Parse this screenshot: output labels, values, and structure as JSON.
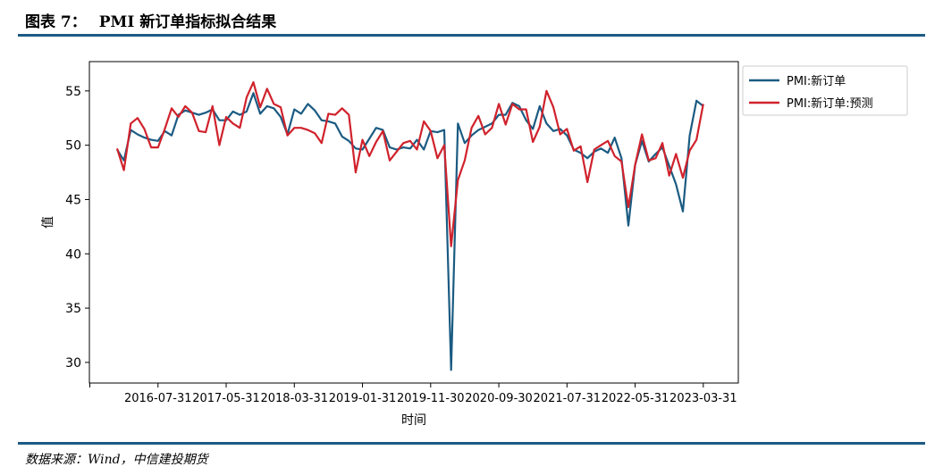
{
  "header": {
    "figure_number": "图表 7：",
    "title": "PMI 新订单指标拟合结果"
  },
  "footer": {
    "source": "数据来源：Wind，中信建投期货"
  },
  "colors": {
    "accent_rule": "#1d5a85",
    "series_actual": "#1b5b82",
    "series_pred": "#d0222c"
  },
  "chart_data": {
    "type": "line",
    "xlabel": "时间",
    "ylabel": "值",
    "ylim": [
      28.1,
      57.7
    ],
    "yticks": [
      30,
      35,
      40,
      45,
      50,
      55
    ],
    "x_tick_labels": [
      "2016-07-31",
      "2017-05-31",
      "2018-03-31",
      "2019-01-31",
      "2019-11-30",
      "2020-09-30",
      "2021-07-31",
      "2022-05-31",
      "2023-03-31"
    ],
    "x_start": "2016-01-31",
    "legend_position": "top-right",
    "grid": false,
    "x": [
      "2016-01",
      "2016-02",
      "2016-03",
      "2016-04",
      "2016-05",
      "2016-06",
      "2016-07",
      "2016-08",
      "2016-09",
      "2016-10",
      "2016-11",
      "2016-12",
      "2017-01",
      "2017-02",
      "2017-03",
      "2017-04",
      "2017-05",
      "2017-06",
      "2017-07",
      "2017-08",
      "2017-09",
      "2017-10",
      "2017-11",
      "2017-12",
      "2018-01",
      "2018-02",
      "2018-03",
      "2018-04",
      "2018-05",
      "2018-06",
      "2018-07",
      "2018-08",
      "2018-09",
      "2018-10",
      "2018-11",
      "2018-12",
      "2019-01",
      "2019-02",
      "2019-03",
      "2019-04",
      "2019-05",
      "2019-06",
      "2019-07",
      "2019-08",
      "2019-09",
      "2019-10",
      "2019-11",
      "2019-12",
      "2020-01",
      "2020-02",
      "2020-03",
      "2020-04",
      "2020-05",
      "2020-06",
      "2020-07",
      "2020-08",
      "2020-09",
      "2020-10",
      "2020-11",
      "2020-12",
      "2021-01",
      "2021-02",
      "2021-03",
      "2021-04",
      "2021-05",
      "2021-06",
      "2021-07",
      "2021-08",
      "2021-09",
      "2021-10",
      "2021-11",
      "2021-12",
      "2022-01",
      "2022-02",
      "2022-03",
      "2022-04",
      "2022-05",
      "2022-06",
      "2022-07",
      "2022-08",
      "2022-09",
      "2022-10",
      "2022-11",
      "2022-12",
      "2023-01",
      "2023-02",
      "2023-03"
    ],
    "series": [
      {
        "name": "PMI:新订单",
        "color": "#1b5b82",
        "values": [
          49.6,
          48.6,
          51.4,
          51.0,
          50.7,
          50.5,
          50.4,
          51.3,
          50.9,
          52.8,
          53.2,
          53.0,
          52.8,
          53.0,
          53.3,
          52.3,
          52.3,
          53.1,
          52.8,
          53.1,
          54.8,
          52.9,
          53.6,
          53.4,
          52.6,
          51.0,
          53.3,
          52.9,
          53.8,
          53.2,
          52.3,
          52.2,
          52.0,
          50.8,
          50.4,
          49.7,
          49.6,
          50.6,
          51.6,
          51.4,
          49.8,
          49.6,
          49.8,
          49.7,
          50.5,
          49.6,
          51.3,
          51.2,
          51.4,
          29.3,
          52.0,
          50.2,
          50.9,
          51.4,
          51.7,
          52.0,
          52.8,
          52.8,
          53.9,
          53.6,
          52.3,
          51.5,
          53.6,
          52.0,
          51.3,
          51.5,
          50.9,
          49.6,
          49.3,
          48.8,
          49.4,
          49.7,
          49.3,
          50.7,
          48.8,
          42.6,
          48.2,
          50.4,
          48.5,
          49.2,
          49.8,
          48.1,
          46.4,
          43.9,
          50.9,
          54.1,
          53.6
        ]
      },
      {
        "name": "PMI:新订单:预测",
        "color": "#d0222c",
        "values": [
          49.7,
          47.7,
          52.0,
          52.5,
          51.5,
          49.8,
          49.8,
          51.5,
          53.4,
          52.6,
          53.6,
          53.0,
          51.3,
          51.2,
          53.6,
          50.0,
          52.6,
          52.0,
          51.6,
          54.4,
          55.8,
          53.5,
          55.2,
          53.8,
          53.5,
          50.9,
          51.6,
          51.6,
          51.4,
          51.1,
          50.2,
          52.9,
          52.8,
          53.4,
          52.8,
          47.5,
          50.5,
          49.0,
          50.3,
          51.3,
          48.6,
          49.4,
          50.2,
          50.4,
          49.6,
          52.2,
          51.3,
          48.8,
          50.0,
          40.7,
          46.8,
          48.6,
          51.6,
          52.7,
          51.0,
          51.6,
          53.8,
          51.9,
          53.8,
          53.3,
          53.3,
          50.3,
          51.7,
          55.0,
          53.5,
          51.0,
          51.5,
          49.5,
          49.9,
          46.6,
          49.6,
          50.0,
          50.4,
          49.0,
          48.5,
          44.3,
          48.2,
          51.0,
          48.6,
          48.8,
          50.2,
          47.2,
          49.2,
          47.0,
          49.5,
          50.5,
          53.8
        ]
      }
    ]
  }
}
